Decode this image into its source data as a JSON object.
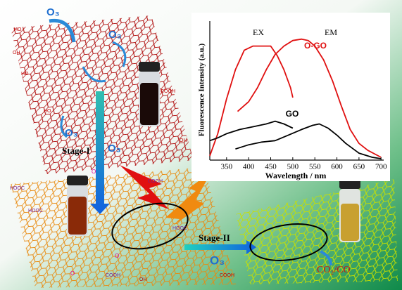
{
  "diagram": {
    "ozone": [
      "O₃",
      "O₃",
      "O₃",
      "O₃",
      "O₃"
    ],
    "stages": [
      "Stage-I",
      "Stage-II"
    ],
    "product": "CO₂/CO",
    "groups": [
      "HO",
      "OH",
      "HO",
      "COOH",
      "HO",
      "OH",
      "HOOC",
      "COOH",
      "HOOC",
      "HOOC",
      "COOH",
      "OH",
      "COOH",
      "O",
      "O",
      "O"
    ]
  },
  "chart_data": {
    "type": "line",
    "x_label": "Wavelength / nm",
    "y_label": "Fluorescence Intensity (a.u.)",
    "annotations": [
      "EX",
      "EM",
      "O-GO",
      "GO"
    ],
    "xlim": [
      312,
      706
    ],
    "ylim": [
      0,
      100
    ],
    "xticks": [
      350,
      400,
      450,
      500,
      550,
      600,
      650,
      700
    ],
    "series": [
      {
        "color": "#e01010",
        "x": [
          312,
          330,
          350,
          370,
          390,
          410,
          430,
          450,
          465,
          480,
          495,
          500
        ],
        "values": [
          3,
          19,
          44,
          65,
          79,
          82,
          82,
          82,
          75,
          65,
          52,
          45
        ]
      },
      {
        "color": "#e01010",
        "x": [
          375,
          400,
          420,
          440,
          460,
          480,
          500,
          520,
          535,
          550,
          570,
          590,
          610,
          630,
          650,
          670,
          700
        ],
        "values": [
          35,
          42,
          52,
          65,
          76,
          82,
          86,
          87,
          86,
          82,
          72,
          57,
          39,
          22,
          12,
          7,
          2
        ]
      },
      {
        "color": "#000000",
        "x": [
          312,
          330,
          350,
          380,
          410,
          440,
          460,
          480,
          500
        ],
        "values": [
          14,
          16,
          19,
          22,
          24,
          26,
          28,
          26,
          23
        ]
      },
      {
        "color": "#000000",
        "x": [
          370,
          400,
          430,
          460,
          490,
          520,
          545,
          560,
          580,
          600,
          620,
          650,
          680,
          700
        ],
        "values": [
          8,
          11,
          13,
          14,
          18,
          22,
          25,
          26,
          23,
          18,
          12,
          5,
          2,
          1
        ]
      }
    ]
  }
}
